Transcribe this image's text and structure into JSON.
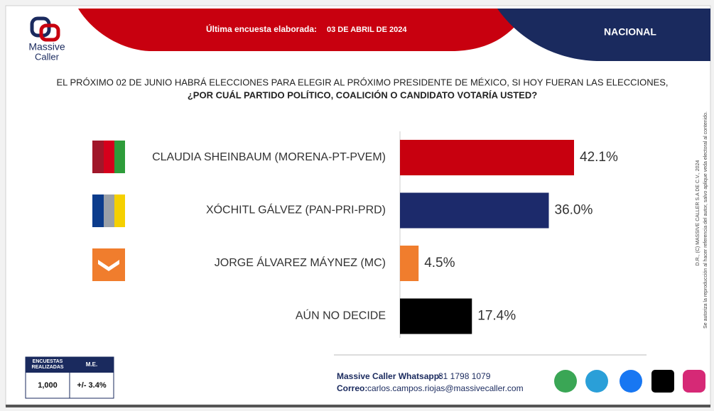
{
  "header": {
    "logo_line1": "Massive",
    "logo_line2": "Caller",
    "survey_label": "Última encuesta elaborada:",
    "survey_date": "03 DE ABRIL DE 2024",
    "scope": "NACIONAL"
  },
  "chart_data": {
    "type": "bar",
    "orientation": "horizontal",
    "title_line1": "EL PRÓXIMO 02 DE JUNIO HABRÁ ELECCIONES PARA ELEGIR AL PRÓXIMO PRESIDENTE DE MÉXICO, SI HOY FUERAN LAS ELECCIONES,",
    "title_line2": "¿POR CUÁL PARTIDO POLÍTICO, COALICIÓN O CANDIDATO VOTARÍA USTED?",
    "categories": [
      "CLAUDIA SHEINBAUM (MORENA-PT-PVEM)",
      "XÓCHITL GÁLVEZ (PAN-PRI-PRD)",
      "JORGE ÁLVAREZ MÁYNEZ (MC)",
      "AÚN NO DECIDE"
    ],
    "values": [
      42.1,
      36.0,
      4.5,
      17.4
    ],
    "value_labels": [
      "42.1%",
      "36.0%",
      "4.5%",
      "17.4%"
    ],
    "colors": [
      "#c8000f",
      "#1c2a6b",
      "#f07d2d",
      "#000000"
    ]
  },
  "footer": {
    "table_header_1": "ENCUESTAS REALIZADAS",
    "table_header_2": "M.E.",
    "surveys": "1,000",
    "margin_error": "+/- 3.4%",
    "whatsapp_label": "Massive Caller Whatsapp:",
    "whatsapp_number": "81 1798 1079",
    "email_label": "Correo:",
    "email": "carlos.campos.riojas@massivecaller.com"
  },
  "side_note": {
    "line1": "D.R., (C) MASSIVE CALLER S.A DE C.V., 2024",
    "line2": "Se autoriza la reproducción al hacer referencia del autor, salvo aplique veda electoral al contenido."
  }
}
